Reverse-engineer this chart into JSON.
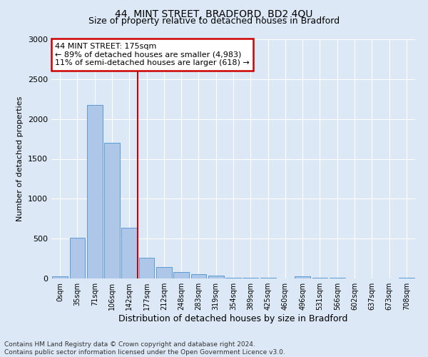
{
  "title": "44, MINT STREET, BRADFORD, BD2 4QU",
  "subtitle": "Size of property relative to detached houses in Bradford",
  "xlabel": "Distribution of detached houses by size in Bradford",
  "ylabel": "Number of detached properties",
  "footnote": "Contains HM Land Registry data © Crown copyright and database right 2024.\nContains public sector information licensed under the Open Government Licence v3.0.",
  "bar_labels": [
    "0sqm",
    "35sqm",
    "71sqm",
    "106sqm",
    "142sqm",
    "177sqm",
    "212sqm",
    "248sqm",
    "283sqm",
    "319sqm",
    "354sqm",
    "389sqm",
    "425sqm",
    "460sqm",
    "496sqm",
    "531sqm",
    "566sqm",
    "602sqm",
    "637sqm",
    "673sqm",
    "708sqm"
  ],
  "bar_values": [
    25,
    510,
    2180,
    1700,
    640,
    260,
    140,
    80,
    55,
    40,
    10,
    5,
    5,
    0,
    30,
    5,
    5,
    0,
    0,
    0,
    5
  ],
  "bar_color": "#aec6e8",
  "bar_edge_color": "#5b9bd5",
  "ylim": [
    0,
    3000
  ],
  "yticks": [
    0,
    500,
    1000,
    1500,
    2000,
    2500,
    3000
  ],
  "property_line_idx": 5,
  "annotation_text": "44 MINT STREET: 175sqm\n← 89% of detached houses are smaller (4,983)\n11% of semi-detached houses are larger (618) →",
  "annotation_box_color": "#ffffff",
  "annotation_box_edge_color": "#cc0000",
  "line_color": "#cc0000",
  "bg_color": "#dce8f5",
  "plot_bg_color": "#dce8f5",
  "title_fontsize": 10,
  "subtitle_fontsize": 9,
  "ylabel_fontsize": 8,
  "xlabel_fontsize": 9
}
